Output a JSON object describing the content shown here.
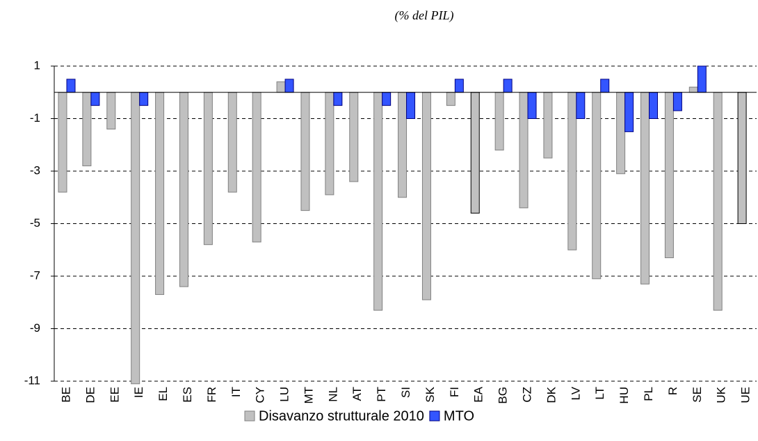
{
  "chart_data": {
    "type": "bar",
    "title": "(% del PIL)",
    "categories": [
      "BE",
      "DE",
      "EE",
      "IE",
      "EL",
      "ES",
      "FR",
      "IT",
      "CY",
      "LU",
      "MT",
      "NL",
      "AT",
      "PT",
      "SI",
      "SK",
      "FI",
      "EA",
      "BG",
      "CZ",
      "DK",
      "LV",
      "LT",
      "HU",
      "PL",
      "R",
      "SE",
      "UK",
      "UE"
    ],
    "series": [
      {
        "name": "Disavanzo strutturale 2010",
        "color": "#c0c0c0",
        "stroke_colors": [
          "#808080",
          "#808080",
          "#808080",
          "#808080",
          "#808080",
          "#808080",
          "#808080",
          "#808080",
          "#808080",
          "#808080",
          "#808080",
          "#808080",
          "#808080",
          "#808080",
          "#808080",
          "#808080",
          "#808080",
          "#000000",
          "#808080",
          "#808080",
          "#808080",
          "#808080",
          "#808080",
          "#808080",
          "#808080",
          "#808080",
          "#808080",
          "#808080",
          "#000000"
        ],
        "values": [
          -3.8,
          -2.8,
          -1.4,
          -11.1,
          -7.7,
          -7.4,
          -5.8,
          -3.8,
          -5.7,
          0.4,
          -4.5,
          -3.9,
          -3.4,
          -8.3,
          -4.0,
          -7.9,
          -0.5,
          -4.6,
          -2.2,
          -4.4,
          -2.5,
          -6.0,
          -7.1,
          -3.1,
          -7.3,
          -6.3,
          0.2,
          -8.3,
          -5.0
        ]
      },
      {
        "name": "MTO",
        "color": "#3355ff",
        "stroke_colors": "#000080",
        "values": [
          0.5,
          -0.5,
          null,
          -0.5,
          null,
          null,
          null,
          null,
          null,
          0.5,
          null,
          -0.5,
          null,
          -0.5,
          -1,
          null,
          0.5,
          null,
          0.5,
          -1,
          null,
          -1,
          0.5,
          -1.5,
          -1,
          -0.7,
          1,
          null,
          null
        ]
      }
    ],
    "ylim": [
      -11,
      1
    ],
    "yticks": [
      1,
      -1,
      -3,
      -5,
      -7,
      -9,
      -11
    ],
    "grid": true,
    "legend": "bottom"
  }
}
